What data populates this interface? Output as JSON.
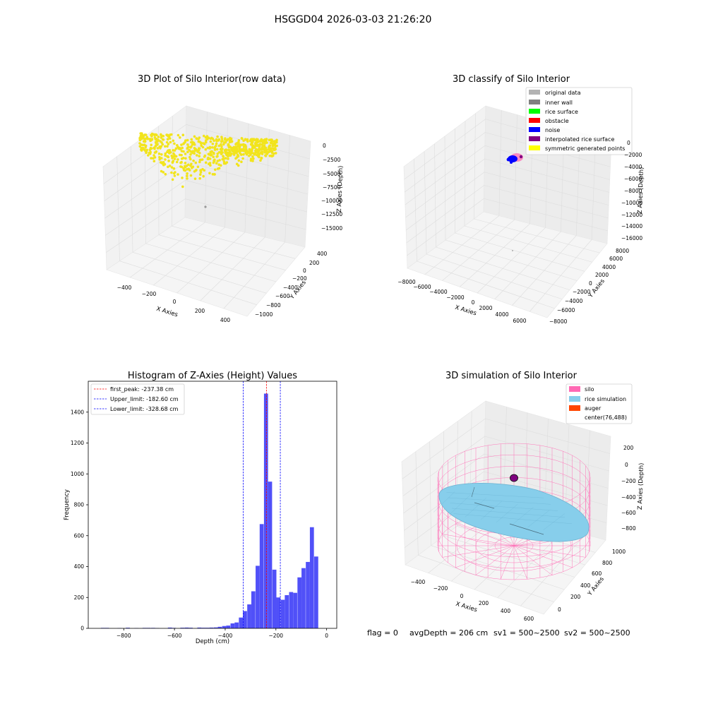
{
  "figure": {
    "title": "HSGGD04 2026-03-03 21:26:20",
    "status": {
      "flag": "flag = 0",
      "avg_depth": "avgDepth = 206 cm",
      "sv1": "sv1 = 500~2500",
      "sv2": "sv2 = 500~2500"
    }
  },
  "colors": {
    "yellow_points": "#f2e41c",
    "original": "#b3b3b3",
    "inner_wall": "#808080",
    "rice_surface": "#00ff00",
    "obstacle": "#ff0000",
    "noise": "#0000ff",
    "interpolated": "#800080",
    "symmetric": "#ffff00",
    "hist_bar": "#5050f8",
    "silo": "#ff69b4",
    "rice_sim": "#87ceeb",
    "auger": "#ff4500",
    "pane": "#f2f2f2",
    "grid": "#e0e0e0"
  },
  "chart_data": [
    {
      "type": "scatter",
      "title": "3D Plot of Silo Interior(row data)",
      "xlabel": "X Axies",
      "ylabel": "Y Axies",
      "zlabel": "Z Axies (Depth)",
      "x_ticks": [
        "−400",
        "−200",
        "0",
        "200",
        "400"
      ],
      "y_ticks": [
        "400",
        "200",
        "0",
        "−200",
        "−400",
        "−600",
        "−800",
        "−1000"
      ],
      "z_ticks": [
        "0",
        "−2500",
        "−5000",
        "−7500",
        "−10000",
        "−12500",
        "−15000"
      ],
      "xlim": [
        -500,
        500
      ],
      "ylim": [
        -1100,
        500
      ],
      "zlim": [
        -16000,
        500
      ]
    },
    {
      "type": "scatter",
      "title": "3D classify of Silo Interior",
      "xlabel": "X Axies",
      "ylabel": "Y Axies",
      "zlabel": "Z Axies (Depth)",
      "x_ticks": [
        "−8000",
        "−6000",
        "−4000",
        "−2000",
        "0",
        "2000",
        "4000",
        "6000"
      ],
      "y_ticks": [
        "8000",
        "6000",
        "4000",
        "2000",
        "0",
        "−2000",
        "−4000",
        "−6000",
        "−8000"
      ],
      "z_ticks": [
        "0",
        "−2000",
        "−4000",
        "−6000",
        "−8000",
        "−10000",
        "−12000",
        "−14000",
        "−16000"
      ],
      "legend": [
        "original data",
        "inner wall",
        "rice surface",
        "obstacle",
        "noise",
        "interpolated rice surface",
        "symmetric generated points"
      ],
      "legend_position": "top-right"
    },
    {
      "type": "bar",
      "title": "Histogram of Z-Axies (Height) Values",
      "xlabel": "Depth (cm)",
      "ylabel": "Frequency",
      "xlim": [
        -940,
        40
      ],
      "ylim": [
        0,
        1600
      ],
      "x_ticks": [
        -800,
        -600,
        -400,
        -200,
        0
      ],
      "y_ticks": [
        0,
        200,
        400,
        600,
        800,
        1000,
        1200,
        1400
      ],
      "bin_width": 16.5,
      "bins": [
        {
          "start": -890,
          "value": 3
        },
        {
          "start": -874,
          "value": 3
        },
        {
          "start": -825,
          "value": 2
        },
        {
          "start": -792,
          "value": 4
        },
        {
          "start": -758,
          "value": 2
        },
        {
          "start": -726,
          "value": 3
        },
        {
          "start": -710,
          "value": 3
        },
        {
          "start": -692,
          "value": 3
        },
        {
          "start": -676,
          "value": 2
        },
        {
          "start": -626,
          "value": 5
        },
        {
          "start": -610,
          "value": 3
        },
        {
          "start": -577,
          "value": 4
        },
        {
          "start": -560,
          "value": 5
        },
        {
          "start": -544,
          "value": 4
        },
        {
          "start": -510,
          "value": 5
        },
        {
          "start": -494,
          "value": 4
        },
        {
          "start": -478,
          "value": 4
        },
        {
          "start": -462,
          "value": 5
        },
        {
          "start": -445,
          "value": 6
        },
        {
          "start": -429,
          "value": 10
        },
        {
          "start": -412,
          "value": 15
        },
        {
          "start": -396,
          "value": 18
        },
        {
          "start": -379,
          "value": 32
        },
        {
          "start": -363,
          "value": 38
        },
        {
          "start": -346,
          "value": 70
        },
        {
          "start": -330,
          "value": 112
        },
        {
          "start": -313,
          "value": 155
        },
        {
          "start": -297,
          "value": 240
        },
        {
          "start": -280,
          "value": 405
        },
        {
          "start": -264,
          "value": 675
        },
        {
          "start": -247,
          "value": 1520
        },
        {
          "start": -231,
          "value": 950
        },
        {
          "start": -214,
          "value": 380
        },
        {
          "start": -198,
          "value": 200
        },
        {
          "start": -181,
          "value": 185
        },
        {
          "start": -165,
          "value": 215
        },
        {
          "start": -148,
          "value": 235
        },
        {
          "start": -132,
          "value": 230
        },
        {
          "start": -115,
          "value": 330
        },
        {
          "start": -99,
          "value": 390
        },
        {
          "start": -82,
          "value": 430
        },
        {
          "start": -66,
          "value": 655
        },
        {
          "start": -49,
          "value": 465
        }
      ],
      "lines": [
        {
          "label": "first_peak: -237.38 cm",
          "x": -237.38,
          "color": "#ff0000"
        },
        {
          "label": "Upper_limit: -182.60 cm",
          "x": -182.6,
          "color": "#0000ff"
        },
        {
          "label": "Lower_limit: -328.68 cm",
          "x": -328.68,
          "color": "#0000ff"
        }
      ],
      "legend_position": "top-left"
    },
    {
      "type": "scatter",
      "title": "3D simulation of Silo Interior",
      "xlabel": "X Axies",
      "ylabel": "Y Axies",
      "zlabel": "Z Axies (Depth)",
      "x_ticks": [
        "−400",
        "−200",
        "0",
        "200",
        "400",
        "600"
      ],
      "y_ticks": [
        "0",
        "200",
        "400",
        "600",
        "800",
        "1000"
      ],
      "z_ticks": [
        "200",
        "0",
        "−200",
        "−400",
        "−600",
        "−800"
      ],
      "legend": [
        "silo",
        "rice simulation",
        "auger",
        "center(76,488)"
      ],
      "legend_position": "top-right"
    }
  ]
}
